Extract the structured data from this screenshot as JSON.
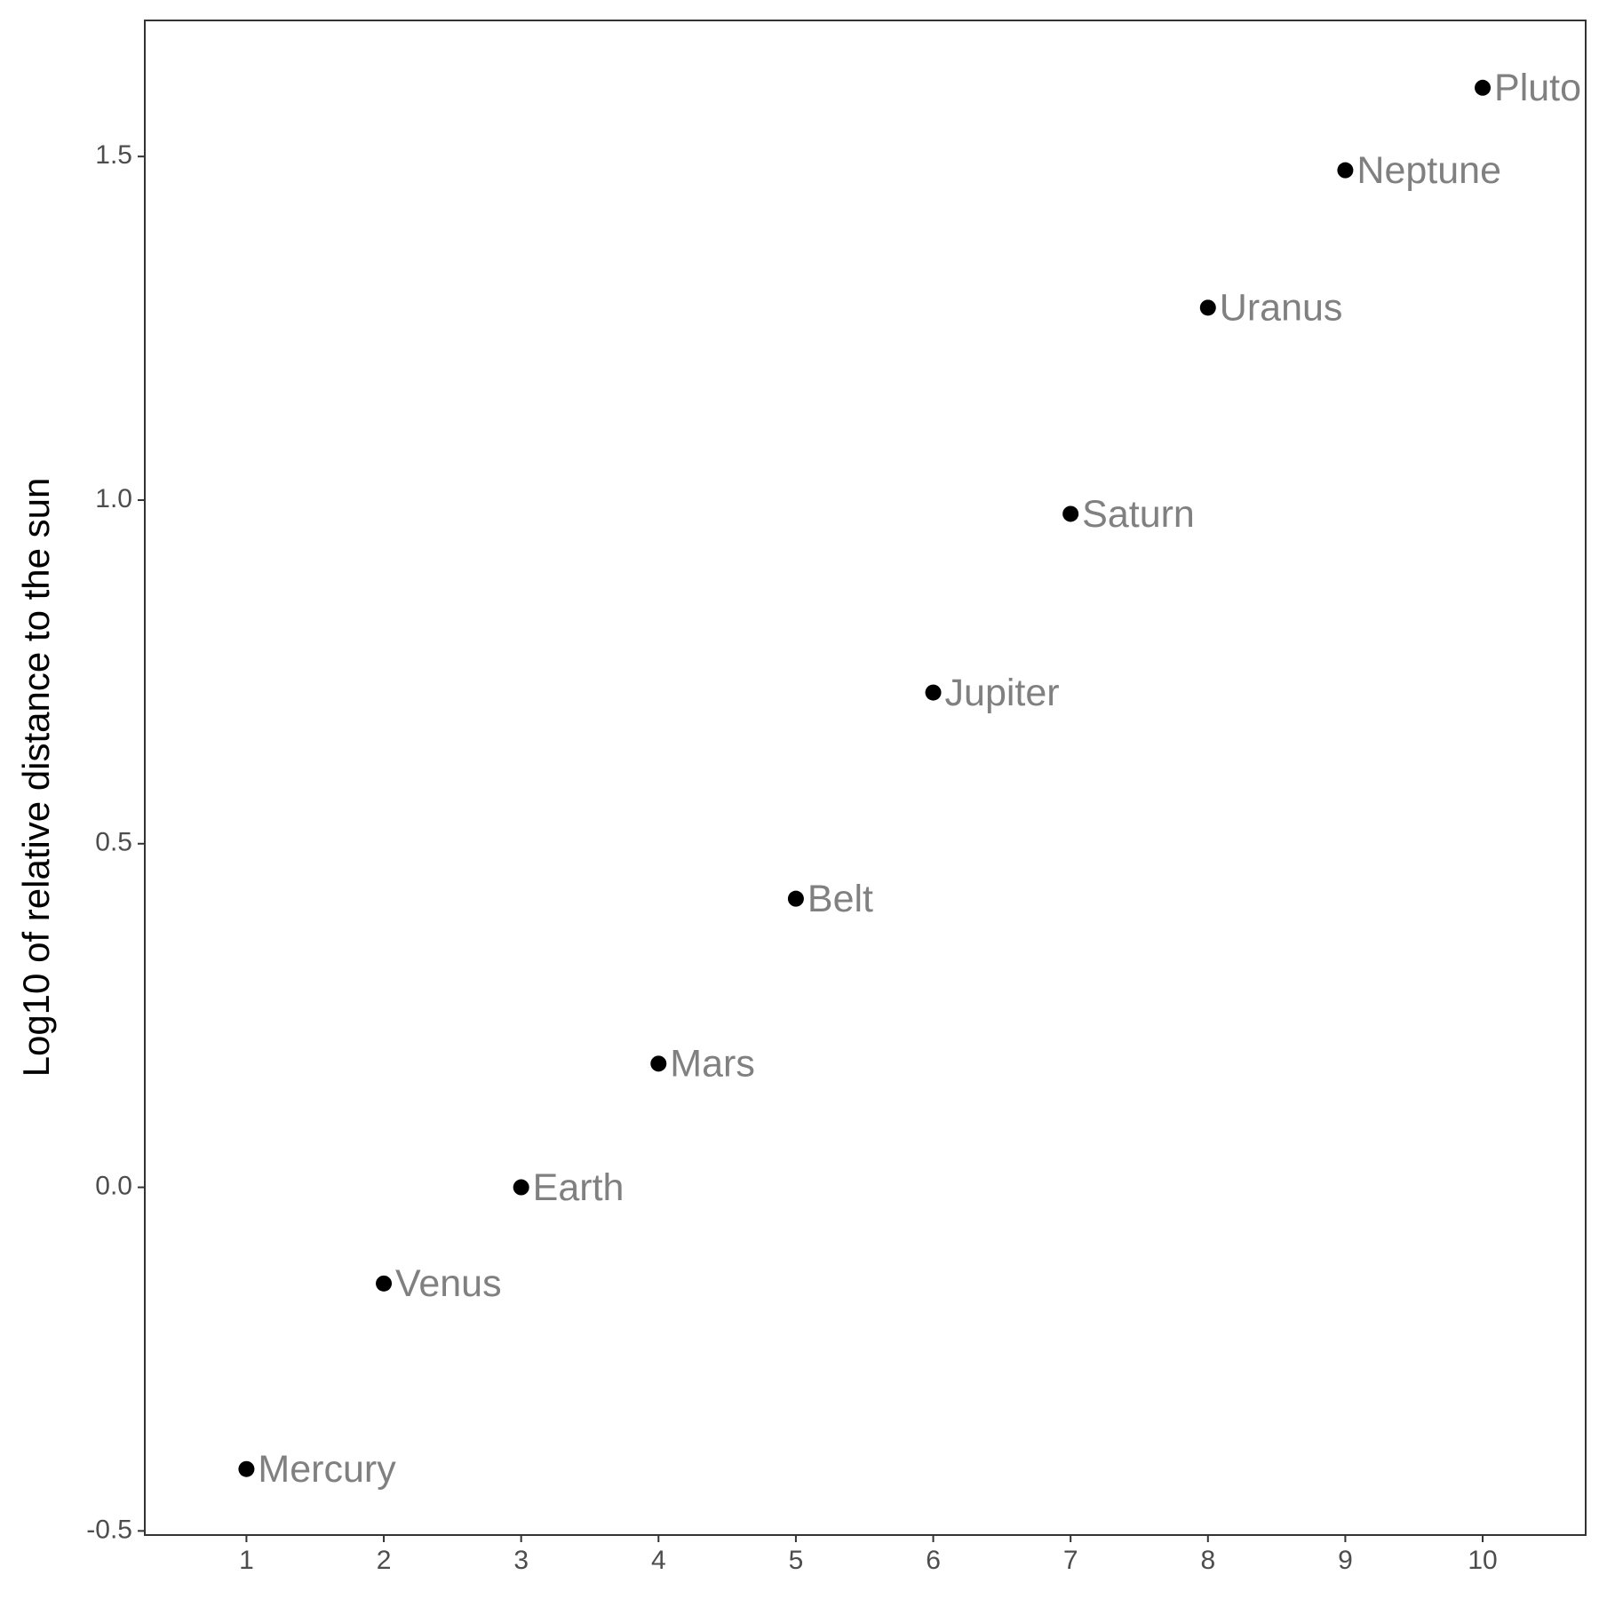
{
  "chart_data": {
    "type": "scatter",
    "ylabel": "Log10 of relative distance to the sun",
    "x": [
      1,
      2,
      3,
      4,
      5,
      6,
      7,
      8,
      9,
      10
    ],
    "values": [
      -0.41,
      -0.14,
      0,
      0.18,
      0.42,
      0.72,
      0.98,
      1.28,
      1.48,
      1.6
    ],
    "labels": [
      "Mercury",
      "Venus",
      "Earth",
      "Mars",
      "Belt",
      "Jupiter",
      "Saturn",
      "Uranus",
      "Neptune",
      "Pluto"
    ],
    "color": "#000000",
    "label_color": "#808080",
    "xlim": [
      0.26,
      10.75
    ],
    "ylim": [
      -0.506,
      1.698
    ],
    "xticks": [
      1,
      2,
      3,
      4,
      5,
      6,
      7,
      8,
      9,
      10
    ],
    "yticks": [
      -0.5,
      {
        "value": 0,
        "label": "0.0"
      },
      0.5,
      {
        "value": 1,
        "label": "1.0"
      },
      1.5
    ],
    "grid": false
  }
}
